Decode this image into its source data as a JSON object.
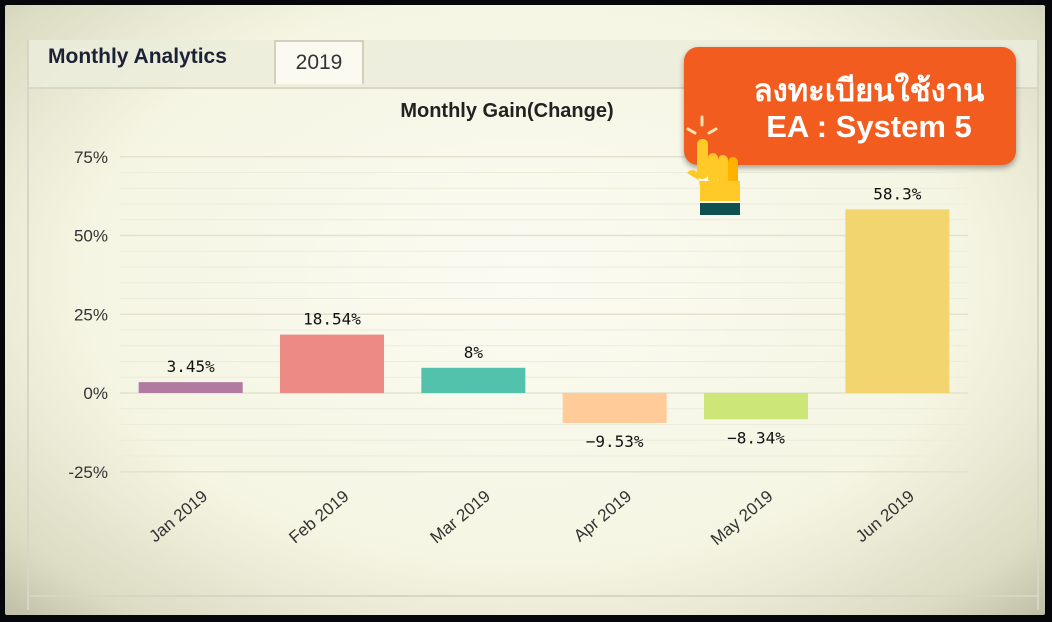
{
  "header": {
    "title": "Monthly Analytics",
    "tab_label": "2019"
  },
  "promo": {
    "line1": "ลงทะเบียนใช้งาน",
    "line2": "EA : System 5",
    "icon": "pointing-hand-icon",
    "color": "#f25c1f"
  },
  "chart_data": {
    "type": "bar",
    "title": "Monthly Gain(Change)",
    "categories": [
      "Jan 2019",
      "Feb 2019",
      "Mar 2019",
      "Apr 2019",
      "May 2019",
      "Jun 2019"
    ],
    "values": [
      3.45,
      18.54,
      8,
      -9.53,
      -8.34,
      58.3
    ],
    "data_labels": [
      "3.45%",
      "18.54%",
      "8%",
      "−9.53%",
      "−8.34%",
      "58.3%"
    ],
    "colors": [
      "#b07aa1",
      "#ee8a86",
      "#52c2ad",
      "#ffcc99",
      "#cde678",
      "#f2d56f"
    ],
    "y_ticks": [
      75,
      50,
      25,
      0,
      -25
    ],
    "y_tick_labels": [
      "75%",
      "50%",
      "25%",
      "0%",
      "-25%"
    ],
    "ylim": [
      -25,
      75
    ],
    "xlabel": "",
    "ylabel": "",
    "grid": true,
    "legend": "none"
  }
}
